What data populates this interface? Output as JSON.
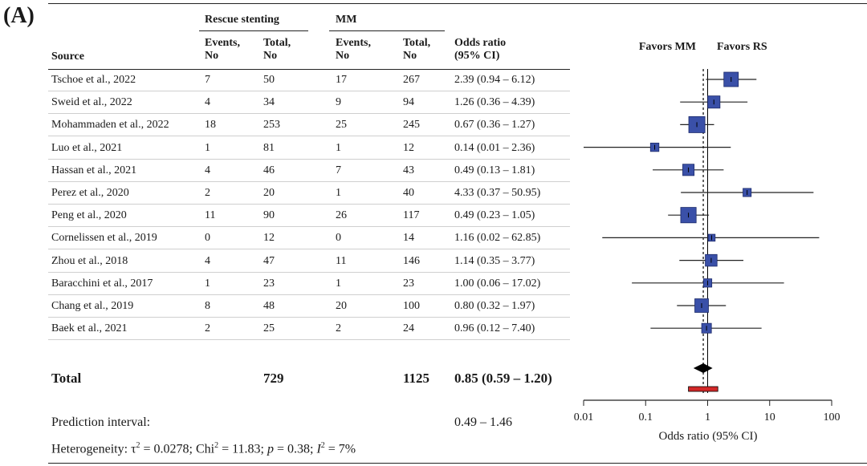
{
  "panel_label": "(A)",
  "table": {
    "group_headers": {
      "rescue": "Rescue stenting",
      "mm": "MM"
    },
    "column_headers": {
      "source": "Source",
      "events_line1": "Events,",
      "events_line2": "No",
      "total_line1": "Total,",
      "total_line2": "No",
      "or_line1": "Odds ratio",
      "or_line2": "(95% CI)"
    },
    "rows": [
      {
        "source": "Tschoe et al., 2022",
        "rs_events": "7",
        "rs_total": "50",
        "mm_events": "17",
        "mm_total": "267",
        "or_text": "2.39 (0.94 – 6.12)"
      },
      {
        "source": "Sweid et al., 2022",
        "rs_events": "4",
        "rs_total": "34",
        "mm_events": "9",
        "mm_total": "94",
        "or_text": "1.26 (0.36 – 4.39)"
      },
      {
        "source": "Mohammaden et al., 2022",
        "rs_events": "18",
        "rs_total": "253",
        "mm_events": "25",
        "mm_total": "245",
        "or_text": "0.67 (0.36 – 1.27)"
      },
      {
        "source": "Luo et al., 2021",
        "rs_events": "1",
        "rs_total": "81",
        "mm_events": "1",
        "mm_total": "12",
        "or_text": "0.14 (0.01 – 2.36)"
      },
      {
        "source": "Hassan et al., 2021",
        "rs_events": "4",
        "rs_total": "46",
        "mm_events": "7",
        "mm_total": "43",
        "or_text": "0.49 (0.13 – 1.81)"
      },
      {
        "source": "Perez et al., 2020",
        "rs_events": "2",
        "rs_total": "20",
        "mm_events": "1",
        "mm_total": "40",
        "or_text": "4.33 (0.37 – 50.95)"
      },
      {
        "source": "Peng et al., 2020",
        "rs_events": "11",
        "rs_total": "90",
        "mm_events": "26",
        "mm_total": "117",
        "or_text": "0.49 (0.23 – 1.05)"
      },
      {
        "source": "Cornelissen et al., 2019",
        "rs_events": "0",
        "rs_total": "12",
        "mm_events": "0",
        "mm_total": "14",
        "or_text": "1.16 (0.02 – 62.85)"
      },
      {
        "source": "Zhou et al., 2018",
        "rs_events": "4",
        "rs_total": "47",
        "mm_events": "11",
        "mm_total": "146",
        "or_text": "1.14 (0.35 – 3.77)"
      },
      {
        "source": "Baracchini et al., 2017",
        "rs_events": "1",
        "rs_total": "23",
        "mm_events": "1",
        "mm_total": "23",
        "or_text": "1.00 (0.06 – 17.02)"
      },
      {
        "source": "Chang et al., 2019",
        "rs_events": "8",
        "rs_total": "48",
        "mm_events": "20",
        "mm_total": "100",
        "or_text": "0.80 (0.32 – 1.97)"
      },
      {
        "source": "Baek et al., 2021",
        "rs_events": "2",
        "rs_total": "25",
        "mm_events": "2",
        "mm_total": "24",
        "or_text": "0.96 (0.12 – 7.40)"
      }
    ],
    "total": {
      "label": "Total",
      "rs_total": "729",
      "mm_total": "1125",
      "or_text": "0.85 (0.59 – 1.20)"
    },
    "prediction": {
      "label": "Prediction interval:",
      "value": "0.49 – 1.46"
    },
    "heterogeneity": {
      "prefix": "Heterogeneity: ",
      "tau_symbol": "τ",
      "tau_exp": "2",
      "tau_value": " = 0.0278; ",
      "chi_label": "Chi",
      "chi_exp": "2",
      "chi_value": " = 11.83; ",
      "p_label": "p",
      "p_value": " =  0.38; ",
      "i_label": "I",
      "i_exp": "2",
      "i_value": " = 7%"
    }
  },
  "chart_data": {
    "type": "forest",
    "xscale": "log",
    "xlim": [
      0.01,
      100
    ],
    "xticks": [
      0.01,
      0.1,
      1,
      10,
      100
    ],
    "xtick_labels": [
      "0.01",
      "0.1",
      "1",
      "10",
      "100"
    ],
    "xlabel": "Odds ratio (95% CI)",
    "favors_left": "Favors MM",
    "favors_right": "Favors RS",
    "null_value": 1,
    "pooled_reference": 0.85,
    "studies": [
      {
        "or": 2.39,
        "lo": 0.94,
        "hi": 6.12,
        "weight": 1.0
      },
      {
        "or": 1.26,
        "lo": 0.36,
        "hi": 4.39,
        "weight": 0.62
      },
      {
        "or": 0.67,
        "lo": 0.36,
        "hi": 1.27,
        "weight": 1.35
      },
      {
        "or": 0.14,
        "lo": 0.01,
        "hi": 2.36,
        "weight": 0.18
      },
      {
        "or": 0.49,
        "lo": 0.13,
        "hi": 1.81,
        "weight": 0.5
      },
      {
        "or": 4.33,
        "lo": 0.37,
        "hi": 50.95,
        "weight": 0.16
      },
      {
        "or": 0.49,
        "lo": 0.23,
        "hi": 1.05,
        "weight": 1.2
      },
      {
        "or": 1.16,
        "lo": 0.02,
        "hi": 62.85,
        "weight": 0.08
      },
      {
        "or": 1.14,
        "lo": 0.35,
        "hi": 3.77,
        "weight": 0.55
      },
      {
        "or": 1.0,
        "lo": 0.06,
        "hi": 17.02,
        "weight": 0.17
      },
      {
        "or": 0.8,
        "lo": 0.32,
        "hi": 1.97,
        "weight": 0.85
      },
      {
        "or": 0.96,
        "lo": 0.12,
        "hi": 7.4,
        "weight": 0.3
      }
    ],
    "pooled": {
      "or": 0.85,
      "lo": 0.59,
      "hi": 1.2
    },
    "prediction_interval": {
      "lo": 0.49,
      "hi": 1.46
    },
    "colors": {
      "box": "#3a50a8",
      "box_border": "#1c2a6a",
      "diamond": "#000000",
      "prediction": "#d22828",
      "reference": "#000000"
    }
  }
}
